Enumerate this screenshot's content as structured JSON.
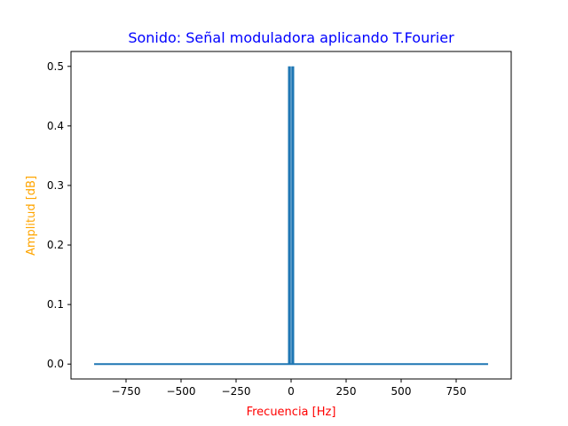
{
  "chart_data": {
    "type": "line",
    "title": "Sonido: Señal moduladora aplicando T.Fourier",
    "xlabel": "Frecuencia [Hz]",
    "ylabel": "Amplitud [dB]",
    "xlim": [
      -1000,
      1000
    ],
    "ylim": [
      -0.025,
      0.525
    ],
    "xticks": [
      -750,
      -500,
      -250,
      0,
      250,
      500,
      750
    ],
    "xtick_labels": [
      "−750",
      "−500",
      "−250",
      "0",
      "250",
      "500",
      "750"
    ],
    "yticks": [
      0.0,
      0.1,
      0.2,
      0.3,
      0.4,
      0.5
    ],
    "ytick_labels": [
      "0.0",
      "0.1",
      "0.2",
      "0.3",
      "0.4",
      "0.5"
    ],
    "grid": false,
    "series": [
      {
        "color": "#1f77b4",
        "x": [
          -895,
          -10,
          -10,
          -10,
          -5,
          -5,
          -5,
          5,
          5,
          5,
          10,
          10,
          10,
          895
        ],
        "y": [
          0,
          0,
          0.5,
          0,
          0,
          0.5,
          0,
          0,
          0.5,
          0,
          0,
          0.5,
          0,
          0
        ]
      }
    ],
    "colors": {
      "title": "#0000ff",
      "xlabel": "#ff0000",
      "ylabel": "#ffa500"
    }
  }
}
